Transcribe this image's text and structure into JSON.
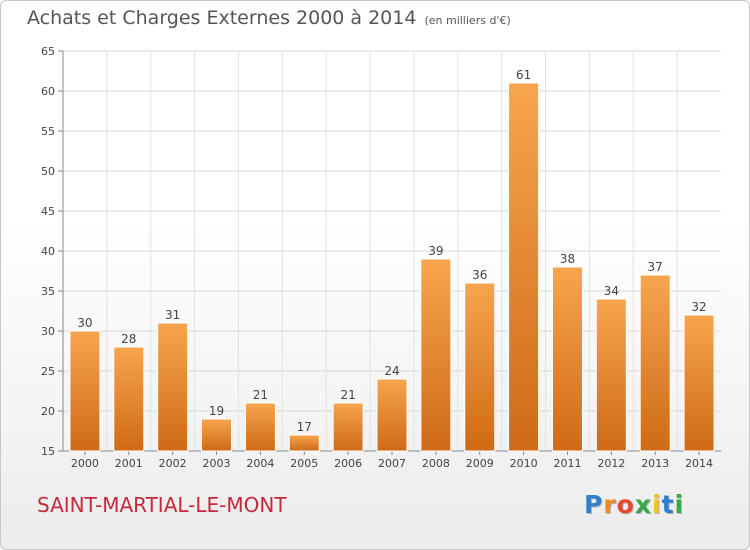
{
  "chart_data": {
    "type": "bar",
    "title": "Achats et Charges Externes 2000 à 2014",
    "subtitle": "(en milliers d'€)",
    "categories": [
      "2000",
      "2001",
      "2002",
      "2003",
      "2004",
      "2005",
      "2006",
      "2007",
      "2008",
      "2009",
      "2010",
      "2011",
      "2012",
      "2013",
      "2014"
    ],
    "values": [
      30,
      28,
      31,
      19,
      21,
      17,
      21,
      24,
      39,
      36,
      61,
      38,
      34,
      37,
      32
    ],
    "ylim": [
      15,
      65
    ],
    "yticks": [
      15,
      20,
      25,
      30,
      35,
      40,
      45,
      50,
      55,
      60,
      65
    ],
    "grid": true,
    "legend": "none",
    "bar_color_light": "#f7a54e",
    "bar_color_dark": "#cf6a16"
  },
  "footer": {
    "commune": "SAINT-MARTIAL-LE-MONT",
    "logo_letters": [
      {
        "char": "P",
        "color": "#2f7fcf"
      },
      {
        "char": "r",
        "color": "#f08a1c"
      },
      {
        "char": "o",
        "color": "#e24a2c"
      },
      {
        "char": "x",
        "color": "#3aa84a"
      },
      {
        "char": "i",
        "color": "#f0c419"
      },
      {
        "char": "t",
        "color": "#2f7fcf"
      },
      {
        "char": "i",
        "color": "#3aa84a"
      }
    ]
  }
}
